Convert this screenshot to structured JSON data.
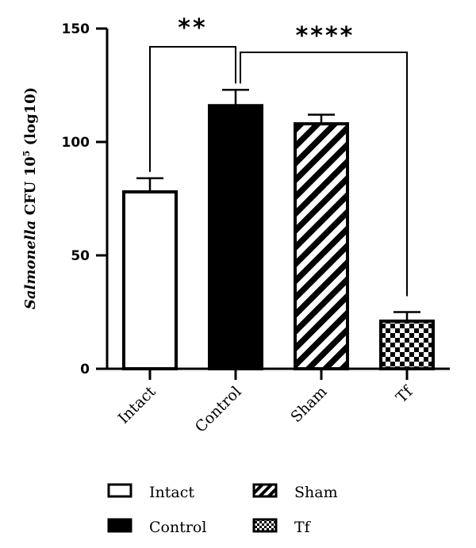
{
  "chart_data": {
    "type": "bar",
    "categories": [
      "Intact",
      "Control",
      "Sham",
      "Tf"
    ],
    "values": [
      78,
      116,
      108,
      21
    ],
    "errors": [
      6,
      7,
      4,
      4
    ],
    "patterns": [
      "open",
      "solid",
      "diagonal",
      "checker"
    ],
    "title": "",
    "ylabel": {
      "italic": "Salmonella",
      "normal": " CFU 10",
      "superscript": "5",
      "tail": " (log10)"
    },
    "ylim": [
      0,
      150
    ],
    "yticks": [
      "0",
      "50",
      "100",
      "150"
    ],
    "significance": [
      {
        "from": "Intact",
        "to": "Control",
        "label": "**"
      },
      {
        "from": "Control",
        "to": "Tf",
        "label": "****"
      }
    ],
    "legend": {
      "placement": "bottom",
      "entries": [
        {
          "label": "Intact",
          "pattern": "open"
        },
        {
          "label": "Sham",
          "pattern": "diagonal"
        },
        {
          "label": "Control",
          "pattern": "solid"
        },
        {
          "label": "Tf",
          "pattern": "checker"
        }
      ]
    },
    "colors": {
      "bar": "#000000",
      "background": "#ffffff"
    }
  }
}
